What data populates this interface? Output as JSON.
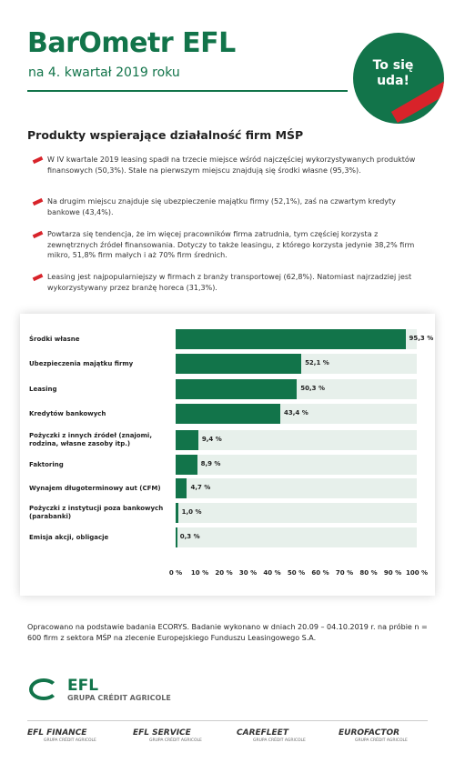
{
  "header": {
    "title": "BarOmetr EFL",
    "subtitle": "na 4. kwartał 2019 roku",
    "badge": "To się uda!"
  },
  "section_title": "Produkty wspierające działalność firm MŚP",
  "bullets": [
    "W IV kwartale 2019 leasing spadł na trzecie miejsce wśród najczęściej wykorzystywanych produktów finansowych (50,3%). Stale na pierwszym miejscu znajdują się środki własne (95,3%).",
    "Na drugim miejscu znajduje się ubezpieczenie majątku firmy (52,1%), zaś na czwartym kredyty bankowe (43,4%).",
    "Powtarza się tendencja, że im więcej pracowników firma zatrudnia, tym częściej korzysta z zewnętrznych źródeł finansowania. Dotyczy to także leasingu, z którego korzysta jedynie 38,2% firm mikro, 51,8% firm małych i aż 70% firm średnich.",
    "Leasing jest najpopularniejszy w firmach z branży transportowej (62,8%). Natomiast najrzadziej jest wykorzystywany przez branżę horeca (31,3%)."
  ],
  "chart_data": {
    "type": "hbar",
    "color": "#12744a",
    "track_color": "#e7f0eb",
    "categories": [
      "Środki własne",
      "Ubezpieczenia majątku firmy",
      "Leasing",
      "Kredytów bankowych",
      "Pożyczki z innych źródeł (znajomi, rodzina, własne zasoby itp.)",
      "Faktoring",
      "Wynajem długoterminowy aut (CFM)",
      "Pożyczki z instytucji poza bankowych (parabanki)",
      "Emisja akcji, obligacje"
    ],
    "values": [
      95.3,
      52.1,
      50.3,
      43.4,
      9.4,
      8.9,
      4.7,
      1.0,
      0.3
    ],
    "value_labels": [
      "95,3 %",
      "52,1 %",
      "50,3 %",
      "43,4 %",
      "9,4 %",
      "8,9 %",
      "4,7 %",
      "1,0 %",
      "0,3 %"
    ],
    "xlim": [
      0,
      100
    ],
    "xticks": [
      {
        "value": 0,
        "label": "0 %"
      },
      {
        "value": 10,
        "label": "10 %"
      },
      {
        "value": 20,
        "label": "20 %"
      },
      {
        "value": 30,
        "label": "30 %"
      },
      {
        "value": 40,
        "label": "40 %"
      },
      {
        "value": 50,
        "label": "50 %"
      },
      {
        "value": 60,
        "label": "60 %"
      },
      {
        "value": 70,
        "label": "70 %"
      },
      {
        "value": 80,
        "label": "80 %"
      },
      {
        "value": 90,
        "label": "90 %"
      },
      {
        "value": 100,
        "label": "100 %"
      }
    ]
  },
  "footer": {
    "note": "Opracowano na podstawie badania ECORYS. Badanie wykonano w dniach 20.09 – 04.10.2019 r. na próbie n = 600 firm z sektora MŚP na zlecenie Europejskiego Funduszu Leasingowego S.A.",
    "logo": "EFL",
    "logo_sub": "GRUPA CRÉDIT AGRICOLE",
    "brands": [
      "EFL FINANCE",
      "EFL SERVICE",
      "CAREFLEET",
      "EUROFACTOR"
    ],
    "brand_sub": "GRUPA CRÉDIT AGRICOLE"
  }
}
